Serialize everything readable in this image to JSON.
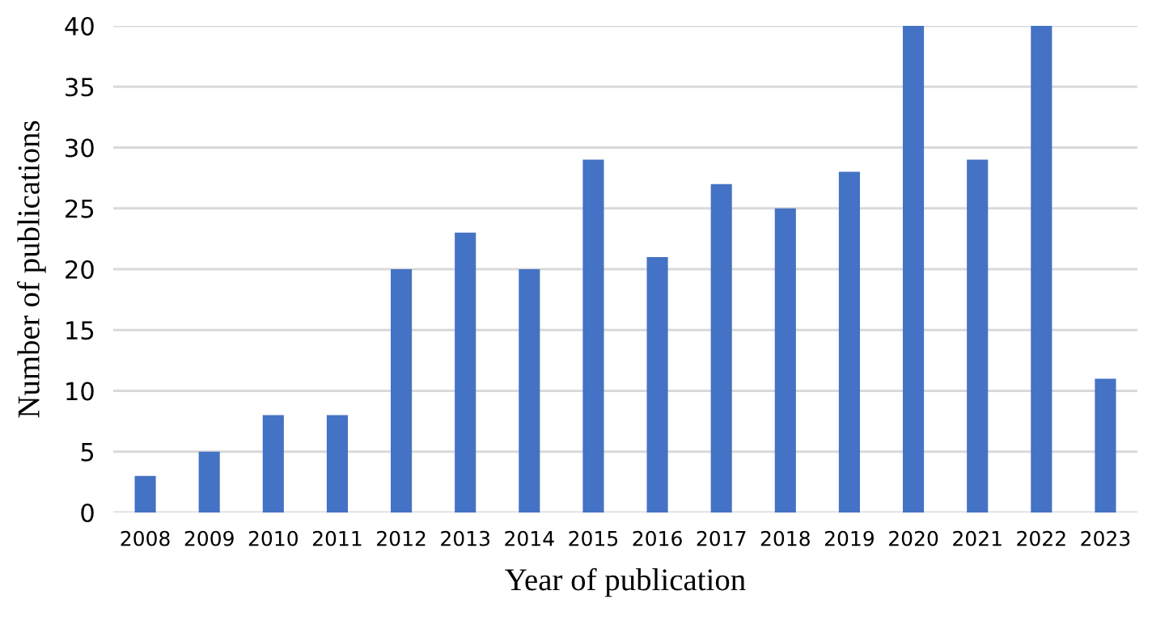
{
  "chart_data": {
    "type": "bar",
    "xlabel": "Year of publication",
    "ylabel": "Number of publications",
    "categories": [
      "2008",
      "2009",
      "2010",
      "2011",
      "2012",
      "2013",
      "2014",
      "2015",
      "2016",
      "2017",
      "2018",
      "2019",
      "2020",
      "2021",
      "2022",
      "2023"
    ],
    "values": [
      3,
      5,
      8,
      8,
      20,
      23,
      20,
      29,
      21,
      27,
      25,
      28,
      40,
      29,
      40,
      11
    ],
    "color": "#4472c4",
    "ylim": [
      0,
      40
    ],
    "yticks": [
      0,
      5,
      10,
      15,
      20,
      25,
      30,
      35,
      40
    ],
    "grid": "y"
  }
}
